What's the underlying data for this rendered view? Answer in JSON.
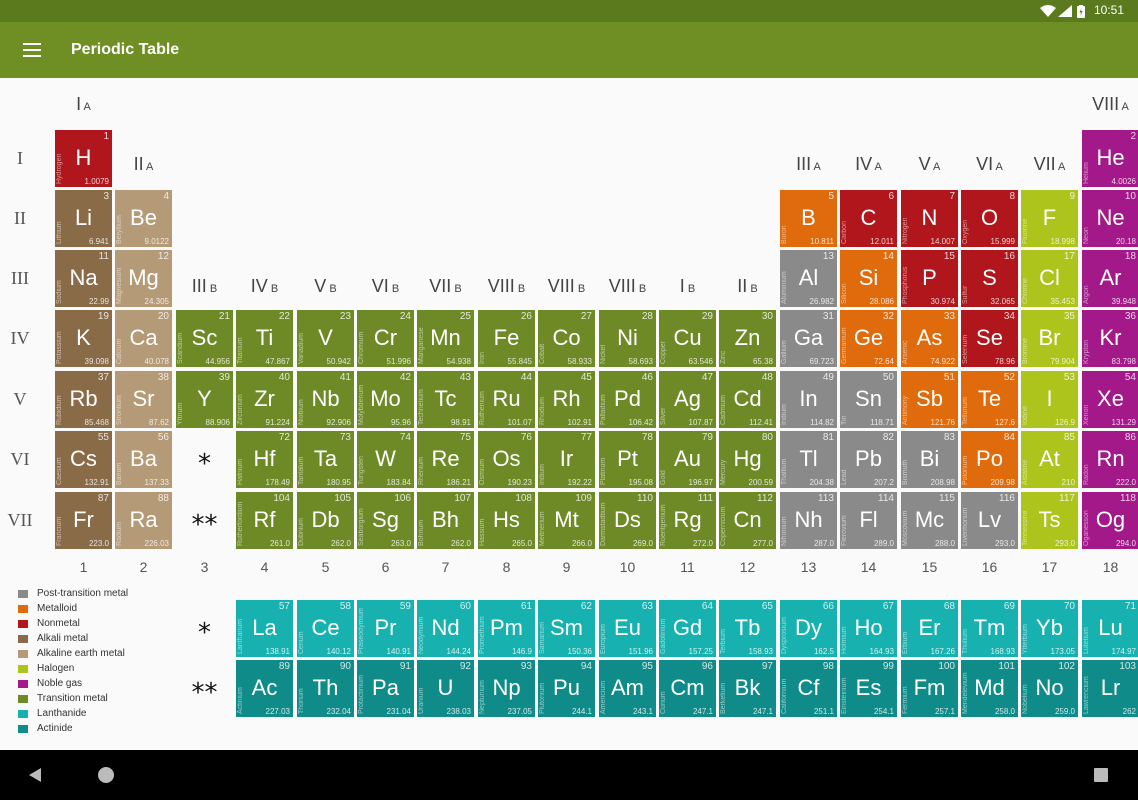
{
  "status": {
    "time": "10:51"
  },
  "app": {
    "title": "Periodic Table"
  },
  "colors": {
    "post-transition": "#8a8a8a",
    "metalloid": "#e06b0d",
    "nonmetal": "#b0161b",
    "alkali": "#8a6b48",
    "alkaline-earth": "#b49a76",
    "halogen": "#acc41b",
    "noble-gas": "#a3198a",
    "transition": "#6e8a27",
    "lanthanide": "#17b2b0",
    "actinide": "#0f8c8a"
  },
  "legend": [
    {
      "label": "Post-transition metal",
      "cat": "post-transition"
    },
    {
      "label": "Metalloid",
      "cat": "metalloid"
    },
    {
      "label": "Nonmetal",
      "cat": "nonmetal"
    },
    {
      "label": "Alkali metal",
      "cat": "alkali"
    },
    {
      "label": "Alkaline earth metal",
      "cat": "alkaline-earth"
    },
    {
      "label": "Halogen",
      "cat": "halogen"
    },
    {
      "label": "Noble gas",
      "cat": "noble-gas"
    },
    {
      "label": "Transition metal",
      "cat": "transition"
    },
    {
      "label": "Lanthanide",
      "cat": "lanthanide"
    },
    {
      "label": "Actinide",
      "cat": "actinide"
    }
  ],
  "period_labels": [
    "I",
    "II",
    "III",
    "IV",
    "V",
    "VI",
    "VII"
  ],
  "group_numbers": [
    "1",
    "2",
    "3",
    "4",
    "5",
    "6",
    "7",
    "8",
    "9",
    "10",
    "11",
    "12",
    "13",
    "14",
    "15",
    "16",
    "17",
    "18"
  ],
  "group_labels": [
    {
      "col": 1,
      "roman": "I",
      "sub": "A"
    },
    {
      "col": 2,
      "roman": "II",
      "sub": "A"
    },
    {
      "col": 3,
      "roman": "III",
      "sub": "B"
    },
    {
      "col": 4,
      "roman": "IV",
      "sub": "B"
    },
    {
      "col": 5,
      "roman": "V",
      "sub": "B"
    },
    {
      "col": 6,
      "roman": "VI",
      "sub": "B"
    },
    {
      "col": 7,
      "roman": "VII",
      "sub": "B"
    },
    {
      "col": 8,
      "roman": "VIII",
      "sub": "B"
    },
    {
      "col": 9,
      "roman": "VIII",
      "sub": "B"
    },
    {
      "col": 10,
      "roman": "VIII",
      "sub": "B"
    },
    {
      "col": 11,
      "roman": "I",
      "sub": "B"
    },
    {
      "col": 12,
      "roman": "II",
      "sub": "B"
    },
    {
      "col": 13,
      "roman": "III",
      "sub": "A"
    },
    {
      "col": 14,
      "roman": "IV",
      "sub": "A"
    },
    {
      "col": 15,
      "roman": "V",
      "sub": "A"
    },
    {
      "col": 16,
      "roman": "VI",
      "sub": "A"
    },
    {
      "col": 17,
      "roman": "VII",
      "sub": "A"
    },
    {
      "col": 18,
      "roman": "VIII",
      "sub": "A"
    }
  ],
  "markers": {
    "lanthanide": "*",
    "actinide": "**"
  },
  "elements": [
    {
      "n": 1,
      "s": "H",
      "name": "Hydrogen",
      "m": "1.0079",
      "r": 1,
      "c": 1,
      "cat": "nonmetal"
    },
    {
      "n": 2,
      "s": "He",
      "name": "Helium",
      "m": "4.0026",
      "r": 1,
      "c": 18,
      "cat": "noble-gas"
    },
    {
      "n": 3,
      "s": "Li",
      "name": "Lithium",
      "m": "6.941",
      "r": 2,
      "c": 1,
      "cat": "alkali"
    },
    {
      "n": 4,
      "s": "Be",
      "name": "Beryllium",
      "m": "9.0122",
      "r": 2,
      "c": 2,
      "cat": "alkaline-earth"
    },
    {
      "n": 5,
      "s": "B",
      "name": "Boron",
      "m": "10.811",
      "r": 2,
      "c": 13,
      "cat": "metalloid"
    },
    {
      "n": 6,
      "s": "C",
      "name": "Carbon",
      "m": "12.011",
      "r": 2,
      "c": 14,
      "cat": "nonmetal"
    },
    {
      "n": 7,
      "s": "N",
      "name": "Nitrogen",
      "m": "14.007",
      "r": 2,
      "c": 15,
      "cat": "nonmetal"
    },
    {
      "n": 8,
      "s": "O",
      "name": "Oxygen",
      "m": "15.999",
      "r": 2,
      "c": 16,
      "cat": "nonmetal"
    },
    {
      "n": 9,
      "s": "F",
      "name": "Fluorine",
      "m": "18.998",
      "r": 2,
      "c": 17,
      "cat": "halogen"
    },
    {
      "n": 10,
      "s": "Ne",
      "name": "Neon",
      "m": "20.18",
      "r": 2,
      "c": 18,
      "cat": "noble-gas"
    },
    {
      "n": 11,
      "s": "Na",
      "name": "Sodium",
      "m": "22.99",
      "r": 3,
      "c": 1,
      "cat": "alkali"
    },
    {
      "n": 12,
      "s": "Mg",
      "name": "Magnesium",
      "m": "24.305",
      "r": 3,
      "c": 2,
      "cat": "alkaline-earth"
    },
    {
      "n": 13,
      "s": "Al",
      "name": "Aluminium",
      "m": "26.982",
      "r": 3,
      "c": 13,
      "cat": "post-transition"
    },
    {
      "n": 14,
      "s": "Si",
      "name": "Silicon",
      "m": "28.086",
      "r": 3,
      "c": 14,
      "cat": "metalloid"
    },
    {
      "n": 15,
      "s": "P",
      "name": "Phosphorus",
      "m": "30.974",
      "r": 3,
      "c": 15,
      "cat": "nonmetal"
    },
    {
      "n": 16,
      "s": "S",
      "name": "Sulfur",
      "m": "32.065",
      "r": 3,
      "c": 16,
      "cat": "nonmetal"
    },
    {
      "n": 17,
      "s": "Cl",
      "name": "Chlorine",
      "m": "35.453",
      "r": 3,
      "c": 17,
      "cat": "halogen"
    },
    {
      "n": 18,
      "s": "Ar",
      "name": "Argon",
      "m": "39.948",
      "r": 3,
      "c": 18,
      "cat": "noble-gas"
    },
    {
      "n": 19,
      "s": "K",
      "name": "Potassium",
      "m": "39.098",
      "r": 4,
      "c": 1,
      "cat": "alkali"
    },
    {
      "n": 20,
      "s": "Ca",
      "name": "Calcium",
      "m": "40.078",
      "r": 4,
      "c": 2,
      "cat": "alkaline-earth"
    },
    {
      "n": 21,
      "s": "Sc",
      "name": "Scandium",
      "m": "44.956",
      "r": 4,
      "c": 3,
      "cat": "transition"
    },
    {
      "n": 22,
      "s": "Ti",
      "name": "Titanium",
      "m": "47.867",
      "r": 4,
      "c": 4,
      "cat": "transition"
    },
    {
      "n": 23,
      "s": "V",
      "name": "Vanadium",
      "m": "50.942",
      "r": 4,
      "c": 5,
      "cat": "transition"
    },
    {
      "n": 24,
      "s": "Cr",
      "name": "Chromium",
      "m": "51.996",
      "r": 4,
      "c": 6,
      "cat": "transition"
    },
    {
      "n": 25,
      "s": "Mn",
      "name": "Manganese",
      "m": "54.938",
      "r": 4,
      "c": 7,
      "cat": "transition"
    },
    {
      "n": 26,
      "s": "Fe",
      "name": "Iron",
      "m": "55.845",
      "r": 4,
      "c": 8,
      "cat": "transition"
    },
    {
      "n": 27,
      "s": "Co",
      "name": "Cobalt",
      "m": "58.933",
      "r": 4,
      "c": 9,
      "cat": "transition"
    },
    {
      "n": 28,
      "s": "Ni",
      "name": "Nickel",
      "m": "58.693",
      "r": 4,
      "c": 10,
      "cat": "transition"
    },
    {
      "n": 29,
      "s": "Cu",
      "name": "Copper",
      "m": "63.546",
      "r": 4,
      "c": 11,
      "cat": "transition"
    },
    {
      "n": 30,
      "s": "Zn",
      "name": "Zinc",
      "m": "65.38",
      "r": 4,
      "c": 12,
      "cat": "transition"
    },
    {
      "n": 31,
      "s": "Ga",
      "name": "Gallium",
      "m": "69.723",
      "r": 4,
      "c": 13,
      "cat": "post-transition"
    },
    {
      "n": 32,
      "s": "Ge",
      "name": "Germanium",
      "m": "72.64",
      "r": 4,
      "c": 14,
      "cat": "metalloid"
    },
    {
      "n": 33,
      "s": "As",
      "name": "Arsenic",
      "m": "74.922",
      "r": 4,
      "c": 15,
      "cat": "metalloid"
    },
    {
      "n": 34,
      "s": "Se",
      "name": "Selenium",
      "m": "78.96",
      "r": 4,
      "c": 16,
      "cat": "nonmetal"
    },
    {
      "n": 35,
      "s": "Br",
      "name": "Bromine",
      "m": "79.904",
      "r": 4,
      "c": 17,
      "cat": "halogen"
    },
    {
      "n": 36,
      "s": "Kr",
      "name": "Krypton",
      "m": "83.798",
      "r": 4,
      "c": 18,
      "cat": "noble-gas"
    },
    {
      "n": 37,
      "s": "Rb",
      "name": "Rubidium",
      "m": "85.468",
      "r": 5,
      "c": 1,
      "cat": "alkali"
    },
    {
      "n": 38,
      "s": "Sr",
      "name": "Strontium",
      "m": "87.62",
      "r": 5,
      "c": 2,
      "cat": "alkaline-earth"
    },
    {
      "n": 39,
      "s": "Y",
      "name": "Yttrium",
      "m": "88.906",
      "r": 5,
      "c": 3,
      "cat": "transition"
    },
    {
      "n": 40,
      "s": "Zr",
      "name": "Zirconium",
      "m": "91.224",
      "r": 5,
      "c": 4,
      "cat": "transition"
    },
    {
      "n": 41,
      "s": "Nb",
      "name": "Niobium",
      "m": "92.906",
      "r": 5,
      "c": 5,
      "cat": "transition"
    },
    {
      "n": 42,
      "s": "Mo",
      "name": "Molybdenum",
      "m": "95.96",
      "r": 5,
      "c": 6,
      "cat": "transition"
    },
    {
      "n": 43,
      "s": "Tc",
      "name": "Technetium",
      "m": "98.91",
      "r": 5,
      "c": 7,
      "cat": "transition"
    },
    {
      "n": 44,
      "s": "Ru",
      "name": "Ruthenium",
      "m": "101.07",
      "r": 5,
      "c": 8,
      "cat": "transition"
    },
    {
      "n": 45,
      "s": "Rh",
      "name": "Rhodium",
      "m": "102.91",
      "r": 5,
      "c": 9,
      "cat": "transition"
    },
    {
      "n": 46,
      "s": "Pd",
      "name": "Palladium",
      "m": "106.42",
      "r": 5,
      "c": 10,
      "cat": "transition"
    },
    {
      "n": 47,
      "s": "Ag",
      "name": "Silver",
      "m": "107.87",
      "r": 5,
      "c": 11,
      "cat": "transition"
    },
    {
      "n": 48,
      "s": "Cd",
      "name": "Cadmium",
      "m": "112.41",
      "r": 5,
      "c": 12,
      "cat": "transition"
    },
    {
      "n": 49,
      "s": "In",
      "name": "Indium",
      "m": "114.82",
      "r": 5,
      "c": 13,
      "cat": "post-transition"
    },
    {
      "n": 50,
      "s": "Sn",
      "name": "Tin",
      "m": "118.71",
      "r": 5,
      "c": 14,
      "cat": "post-transition"
    },
    {
      "n": 51,
      "s": "Sb",
      "name": "Antimony",
      "m": "121.76",
      "r": 5,
      "c": 15,
      "cat": "metalloid"
    },
    {
      "n": 52,
      "s": "Te",
      "name": "Tellurium",
      "m": "127.6",
      "r": 5,
      "c": 16,
      "cat": "metalloid"
    },
    {
      "n": 53,
      "s": "I",
      "name": "Iodine",
      "m": "126.9",
      "r": 5,
      "c": 17,
      "cat": "halogen"
    },
    {
      "n": 54,
      "s": "Xe",
      "name": "Xenon",
      "m": "131.29",
      "r": 5,
      "c": 18,
      "cat": "noble-gas"
    },
    {
      "n": 55,
      "s": "Cs",
      "name": "Caesium",
      "m": "132.91",
      "r": 6,
      "c": 1,
      "cat": "alkali"
    },
    {
      "n": 56,
      "s": "Ba",
      "name": "Barium",
      "m": "137.33",
      "r": 6,
      "c": 2,
      "cat": "alkaline-earth"
    },
    {
      "n": 72,
      "s": "Hf",
      "name": "Hafnium",
      "m": "178.49",
      "r": 6,
      "c": 4,
      "cat": "transition"
    },
    {
      "n": 73,
      "s": "Ta",
      "name": "Tantalum",
      "m": "180.95",
      "r": 6,
      "c": 5,
      "cat": "transition"
    },
    {
      "n": 74,
      "s": "W",
      "name": "Tungsten",
      "m": "183.84",
      "r": 6,
      "c": 6,
      "cat": "transition"
    },
    {
      "n": 75,
      "s": "Re",
      "name": "Rhenium",
      "m": "186.21",
      "r": 6,
      "c": 7,
      "cat": "transition"
    },
    {
      "n": 76,
      "s": "Os",
      "name": "Osmium",
      "m": "190.23",
      "r": 6,
      "c": 8,
      "cat": "transition"
    },
    {
      "n": 77,
      "s": "Ir",
      "name": "Iridium",
      "m": "192.22",
      "r": 6,
      "c": 9,
      "cat": "transition"
    },
    {
      "n": 78,
      "s": "Pt",
      "name": "Platinum",
      "m": "195.08",
      "r": 6,
      "c": 10,
      "cat": "transition"
    },
    {
      "n": 79,
      "s": "Au",
      "name": "Gold",
      "m": "196.97",
      "r": 6,
      "c": 11,
      "cat": "transition"
    },
    {
      "n": 80,
      "s": "Hg",
      "name": "Mercury",
      "m": "200.59",
      "r": 6,
      "c": 12,
      "cat": "transition"
    },
    {
      "n": 81,
      "s": "Tl",
      "name": "Thallium",
      "m": "204.38",
      "r": 6,
      "c": 13,
      "cat": "post-transition"
    },
    {
      "n": 82,
      "s": "Pb",
      "name": "Lead",
      "m": "207.2",
      "r": 6,
      "c": 14,
      "cat": "post-transition"
    },
    {
      "n": 83,
      "s": "Bi",
      "name": "Bismuth",
      "m": "208.98",
      "r": 6,
      "c": 15,
      "cat": "post-transition"
    },
    {
      "n": 84,
      "s": "Po",
      "name": "Polonium",
      "m": "209.98",
      "r": 6,
      "c": 16,
      "cat": "metalloid"
    },
    {
      "n": 85,
      "s": "At",
      "name": "Astatine",
      "m": "210",
      "r": 6,
      "c": 17,
      "cat": "halogen"
    },
    {
      "n": 86,
      "s": "Rn",
      "name": "Radon",
      "m": "222.0",
      "r": 6,
      "c": 18,
      "cat": "noble-gas"
    },
    {
      "n": 87,
      "s": "Fr",
      "name": "Francium",
      "m": "223.0",
      "r": 7,
      "c": 1,
      "cat": "alkali"
    },
    {
      "n": 88,
      "s": "Ra",
      "name": "Radium",
      "m": "226.03",
      "r": 7,
      "c": 2,
      "cat": "alkaline-earth"
    },
    {
      "n": 104,
      "s": "Rf",
      "name": "Rutherfordium",
      "m": "261.0",
      "r": 7,
      "c": 4,
      "cat": "transition"
    },
    {
      "n": 105,
      "s": "Db",
      "name": "Dubnium",
      "m": "262.0",
      "r": 7,
      "c": 5,
      "cat": "transition"
    },
    {
      "n": 106,
      "s": "Sg",
      "name": "Seaborgium",
      "m": "263.0",
      "r": 7,
      "c": 6,
      "cat": "transition"
    },
    {
      "n": 107,
      "s": "Bh",
      "name": "Bohrium",
      "m": "262.0",
      "r": 7,
      "c": 7,
      "cat": "transition"
    },
    {
      "n": 108,
      "s": "Hs",
      "name": "Hassium",
      "m": "265.0",
      "r": 7,
      "c": 8,
      "cat": "transition"
    },
    {
      "n": 109,
      "s": "Mt",
      "name": "Meitnerium",
      "m": "266.0",
      "r": 7,
      "c": 9,
      "cat": "transition"
    },
    {
      "n": 110,
      "s": "Ds",
      "name": "Darmstadtium",
      "m": "269.0",
      "r": 7,
      "c": 10,
      "cat": "transition"
    },
    {
      "n": 111,
      "s": "Rg",
      "name": "Roentgenium",
      "m": "272.0",
      "r": 7,
      "c": 11,
      "cat": "transition"
    },
    {
      "n": 112,
      "s": "Cn",
      "name": "Copernicium",
      "m": "277.0",
      "r": 7,
      "c": 12,
      "cat": "transition"
    },
    {
      "n": 113,
      "s": "Nh",
      "name": "Nihonium",
      "m": "287.0",
      "r": 7,
      "c": 13,
      "cat": "post-transition"
    },
    {
      "n": 114,
      "s": "Fl",
      "name": "Flerovium",
      "m": "289.0",
      "r": 7,
      "c": 14,
      "cat": "post-transition"
    },
    {
      "n": 115,
      "s": "Mc",
      "name": "Moscovium",
      "m": "288.0",
      "r": 7,
      "c": 15,
      "cat": "post-transition"
    },
    {
      "n": 116,
      "s": "Lv",
      "name": "Livermorium",
      "m": "293.0",
      "r": 7,
      "c": 16,
      "cat": "post-transition"
    },
    {
      "n": 117,
      "s": "Ts",
      "name": "Tennessine",
      "m": "293.0",
      "r": 7,
      "c": 17,
      "cat": "halogen"
    },
    {
      "n": 118,
      "s": "Og",
      "name": "Oganesson",
      "m": "294.0",
      "r": 7,
      "c": 18,
      "cat": "noble-gas"
    },
    {
      "n": 57,
      "s": "La",
      "name": "Lanthanum",
      "m": "138.91",
      "r": 9,
      "c": 4,
      "cat": "lanthanide"
    },
    {
      "n": 58,
      "s": "Ce",
      "name": "Cerium",
      "m": "140.12",
      "r": 9,
      "c": 5,
      "cat": "lanthanide"
    },
    {
      "n": 59,
      "s": "Pr",
      "name": "Praseodymium",
      "m": "140.91",
      "r": 9,
      "c": 6,
      "cat": "lanthanide"
    },
    {
      "n": 60,
      "s": "Nd",
      "name": "Neodymium",
      "m": "144.24",
      "r": 9,
      "c": 7,
      "cat": "lanthanide"
    },
    {
      "n": 61,
      "s": "Pm",
      "name": "Promethium",
      "m": "146.9",
      "r": 9,
      "c": 8,
      "cat": "lanthanide"
    },
    {
      "n": 62,
      "s": "Sm",
      "name": "Samarium",
      "m": "150.36",
      "r": 9,
      "c": 9,
      "cat": "lanthanide"
    },
    {
      "n": 63,
      "s": "Eu",
      "name": "Europium",
      "m": "151.96",
      "r": 9,
      "c": 10,
      "cat": "lanthanide"
    },
    {
      "n": 64,
      "s": "Gd",
      "name": "Gadolinium",
      "m": "157.25",
      "r": 9,
      "c": 11,
      "cat": "lanthanide"
    },
    {
      "n": 65,
      "s": "Tb",
      "name": "Terbium",
      "m": "158.93",
      "r": 9,
      "c": 12,
      "cat": "lanthanide"
    },
    {
      "n": 66,
      "s": "Dy",
      "name": "Dysprosium",
      "m": "162.5",
      "r": 9,
      "c": 13,
      "cat": "lanthanide"
    },
    {
      "n": 67,
      "s": "Ho",
      "name": "Holmium",
      "m": "164.93",
      "r": 9,
      "c": 14,
      "cat": "lanthanide"
    },
    {
      "n": 68,
      "s": "Er",
      "name": "Erbium",
      "m": "167.26",
      "r": 9,
      "c": 15,
      "cat": "lanthanide"
    },
    {
      "n": 69,
      "s": "Tm",
      "name": "Thulium",
      "m": "168.93",
      "r": 9,
      "c": 16,
      "cat": "lanthanide"
    },
    {
      "n": 70,
      "s": "Yb",
      "name": "Ytterbium",
      "m": "173.05",
      "r": 9,
      "c": 17,
      "cat": "lanthanide"
    },
    {
      "n": 71,
      "s": "Lu",
      "name": "Lutetium",
      "m": "174.97",
      "r": 9,
      "c": 18,
      "cat": "lanthanide"
    },
    {
      "n": 89,
      "s": "Ac",
      "name": "Actinium",
      "m": "227.03",
      "r": 10,
      "c": 4,
      "cat": "actinide"
    },
    {
      "n": 90,
      "s": "Th",
      "name": "Thorium",
      "m": "232.04",
      "r": 10,
      "c": 5,
      "cat": "actinide"
    },
    {
      "n": 91,
      "s": "Pa",
      "name": "Protactinium",
      "m": "231.04",
      "r": 10,
      "c": 6,
      "cat": "actinide"
    },
    {
      "n": 92,
      "s": "U",
      "name": "Uranium",
      "m": "238.03",
      "r": 10,
      "c": 7,
      "cat": "actinide"
    },
    {
      "n": 93,
      "s": "Np",
      "name": "Neptunium",
      "m": "237.05",
      "r": 10,
      "c": 8,
      "cat": "actinide"
    },
    {
      "n": 94,
      "s": "Pu",
      "name": "Plutonium",
      "m": "244.1",
      "r": 10,
      "c": 9,
      "cat": "actinide"
    },
    {
      "n": 95,
      "s": "Am",
      "name": "Americium",
      "m": "243.1",
      "r": 10,
      "c": 10,
      "cat": "actinide"
    },
    {
      "n": 96,
      "s": "Cm",
      "name": "Curium",
      "m": "247.1",
      "r": 10,
      "c": 11,
      "cat": "actinide"
    },
    {
      "n": 97,
      "s": "Bk",
      "name": "Berkelium",
      "m": "247.1",
      "r": 10,
      "c": 12,
      "cat": "actinide"
    },
    {
      "n": 98,
      "s": "Cf",
      "name": "Californium",
      "m": "251.1",
      "r": 10,
      "c": 13,
      "cat": "actinide"
    },
    {
      "n": 99,
      "s": "Es",
      "name": "Einsteinium",
      "m": "254.1",
      "r": 10,
      "c": 14,
      "cat": "actinide"
    },
    {
      "n": 100,
      "s": "Fm",
      "name": "Fermium",
      "m": "257.1",
      "r": 10,
      "c": 15,
      "cat": "actinide"
    },
    {
      "n": 101,
      "s": "Md",
      "name": "Mendelevium",
      "m": "258.0",
      "r": 10,
      "c": 16,
      "cat": "actinide"
    },
    {
      "n": 102,
      "s": "No",
      "name": "Nobelium",
      "m": "259.0",
      "r": 10,
      "c": 17,
      "cat": "actinide"
    },
    {
      "n": 103,
      "s": "Lr",
      "name": "Lawrencium",
      "m": "262",
      "r": 10,
      "c": 18,
      "cat": "actinide"
    }
  ]
}
